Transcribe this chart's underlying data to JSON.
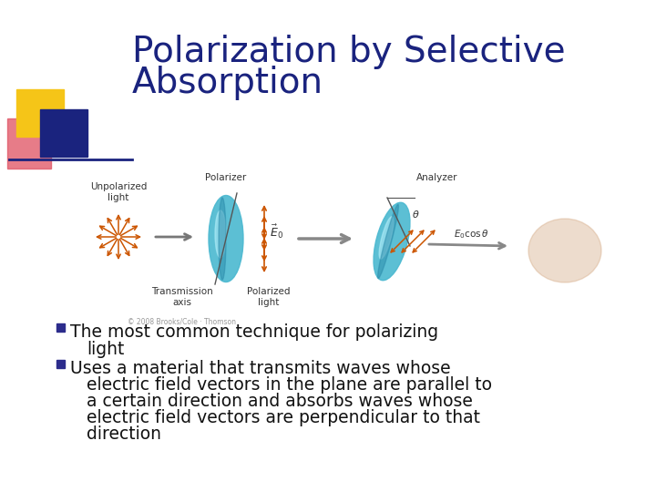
{
  "title_line1": "Polarization by Selective",
  "title_line2": "Absorption",
  "title_color": "#1a237e",
  "title_fontsize": 28,
  "background_color": "#ffffff",
  "bullet_marker_color": "#2c2c8c",
  "bullet1_line1": "The most common technique for polarizing",
  "bullet1_line2": "light",
  "bullet2_line1": "Uses a material that transmits waves whose",
  "bullet2_line2": "electric field vectors in the plane are parallel to",
  "bullet2_line3": "a certain direction and absorbs waves whose",
  "bullet2_line4": "electric field vectors are perpendicular to that",
  "bullet2_line5": "direction",
  "bullet_fontsize": 13.5,
  "bullet_color": "#111111",
  "logo_yellow": "#f5c518",
  "logo_blue": "#1a237e",
  "logo_red": "#e05060",
  "divider_color": "#1a237e"
}
